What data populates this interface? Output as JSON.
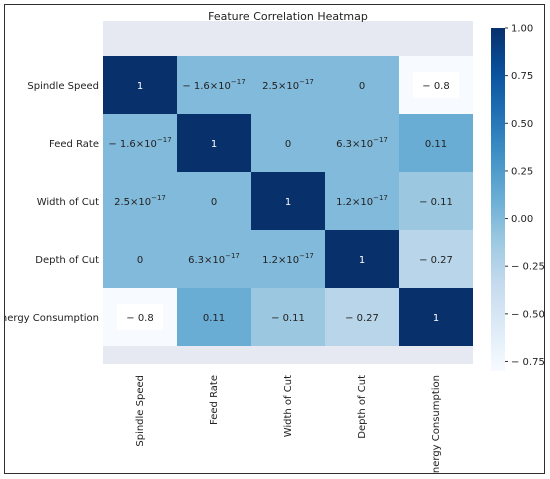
{
  "chart_data": {
    "type": "heatmap",
    "title": "Feature Correlation Heatmap",
    "rows": [
      "Spindle Speed",
      "Feed Rate",
      "Width of Cut",
      "Depth of Cut",
      "Energy Consumption"
    ],
    "cols": [
      "Spindle Speed",
      "Feed Rate",
      "Width of Cut",
      "Depth of Cut",
      "Energy Consumption"
    ],
    "values": [
      [
        1,
        -1.6e-17,
        2.5e-17,
        0,
        -0.8
      ],
      [
        -1.6e-17,
        1,
        0,
        6.3e-17,
        0.11
      ],
      [
        2.5e-17,
        0,
        1,
        1.2e-17,
        -0.11
      ],
      [
        0,
        6.3e-17,
        1.2e-17,
        1,
        -0.27
      ],
      [
        -0.8,
        0.11,
        -0.11,
        -0.27,
        1
      ]
    ],
    "cell_labels": [
      [
        {
          "t": "1"
        },
        {
          "t": "− 1.6×10",
          "e": "−17"
        },
        {
          "t": "2.5×10",
          "e": "−17"
        },
        {
          "t": "0"
        },
        {
          "t": "− 0.8"
        }
      ],
      [
        {
          "t": "− 1.6×10",
          "e": "−17"
        },
        {
          "t": "1"
        },
        {
          "t": "0"
        },
        {
          "t": "6.3×10",
          "e": "−17"
        },
        {
          "t": "0.11"
        }
      ],
      [
        {
          "t": "2.5×10",
          "e": "−17"
        },
        {
          "t": "0"
        },
        {
          "t": "1"
        },
        {
          "t": "1.2×10",
          "e": "−17"
        },
        {
          "t": "− 0.11"
        }
      ],
      [
        {
          "t": "0"
        },
        {
          "t": "6.3×10",
          "e": "−17"
        },
        {
          "t": "1.2×10",
          "e": "−17"
        },
        {
          "t": "1"
        },
        {
          "t": "− 0.27"
        }
      ],
      [
        {
          "t": "− 0.8"
        },
        {
          "t": "0.11"
        },
        {
          "t": "− 0.11"
        },
        {
          "t": "− 0.27"
        },
        {
          "t": "1"
        }
      ]
    ],
    "colorbar": {
      "min": -0.8,
      "max": 1.0,
      "ticks": [
        1.0,
        0.75,
        0.5,
        0.25,
        0.0,
        -0.25,
        -0.5,
        -0.75
      ],
      "tick_labels": [
        "1.00",
        "0.75",
        "0.50",
        "0.25",
        "0.00",
        "− 0.25",
        "− 0.50",
        "− 0.75"
      ],
      "colormap": "Blues",
      "low_color": "#f7fbff",
      "high_color": "#08306b"
    },
    "grid": false,
    "legend": "colorbar right"
  }
}
